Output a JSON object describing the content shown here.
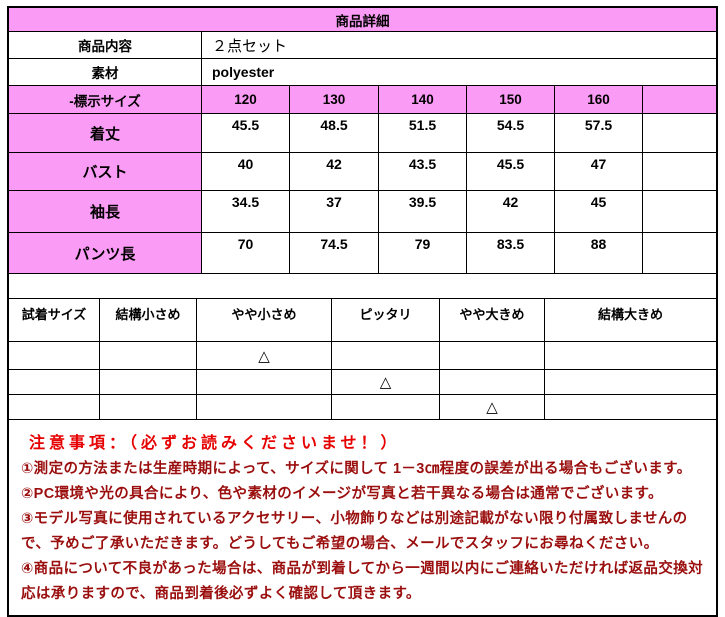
{
  "title": "商品詳細",
  "colors": {
    "accent_pink": "#FA9BF5",
    "notes_heading_red": "#E60000",
    "notes_body_red": "#9A0E0E"
  },
  "info_rows": [
    {
      "label": "商品内容",
      "value": "２点セット"
    },
    {
      "label": "素材",
      "value": "polyester"
    }
  ],
  "size_table": {
    "header_label": "-標示サイズ",
    "sizes": [
      "120",
      "130",
      "140",
      "150",
      "160"
    ],
    "rows": [
      {
        "label": "着丈",
        "values": [
          "45.5",
          "48.5",
          "51.5",
          "54.5",
          "57.5"
        ]
      },
      {
        "label": "バスト",
        "values": [
          "40",
          "42",
          "43.5",
          "45.5",
          "47"
        ]
      },
      {
        "label": "袖長",
        "values": [
          "34.5",
          "37",
          "39.5",
          "42",
          "45"
        ]
      },
      {
        "label": "パンツ長",
        "values": [
          "70",
          "74.5",
          "79",
          "83.5",
          "88"
        ]
      }
    ]
  },
  "fit_table": {
    "headers": [
      "試着サイズ",
      "結構小さめ",
      "やや小さめ",
      "ピッタリ",
      "やや大きめ",
      "結構大きめ"
    ],
    "mark": "△"
  },
  "notes": {
    "heading": "注意事項：（必ずお読みくださいませ！）",
    "items": [
      "①測定の方法または生産時期によって、サイズに関して 1－3㎝程度の誤差が出る場合もございます。",
      "②PC環境や光の具合により、色や素材のイメージが写真と若干異なる場合は通常でございます。",
      "③モデル写真に使用されているアクセサリー、小物飾りなどは別途記載がない限り付属致しませんので、予めご了承いただきます。どうしてもご希望の場合、メールでスタッフにお尋ねください。",
      "④商品について不良があった場合は、商品が到着してから一週間以内にご連絡いただければ返品交換対応は承りますので、商品到着後必ずよく確認して頂きます。"
    ]
  }
}
